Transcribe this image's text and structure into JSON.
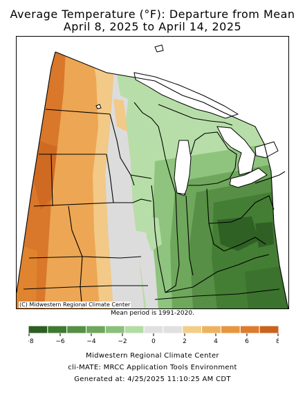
{
  "title_line1": "Average Temperature (°F): Departure from Mean",
  "title_line2": "April 8, 2025 to April 14, 2025",
  "credit": "(C) Midwestern Regional Climate Center",
  "mean_period": "Mean period is 1991-2020.",
  "legend": {
    "colors": [
      "#2e5e22",
      "#3f7a31",
      "#568f45",
      "#6ea75b",
      "#8bc07a",
      "#b3dca4",
      "#e0e0e0",
      "#e0e0e0",
      "#f1cf8a",
      "#eeb25f",
      "#e7963f",
      "#df7b2c",
      "#c9631e"
    ],
    "ticks": [
      "−8",
      "−6",
      "−4",
      "−2",
      "0",
      "2",
      "4",
      "6",
      "8"
    ]
  },
  "footer_line1": "Midwestern Regional Climate Center",
  "footer_line2": "cli-MATE: MRCC Application Tools Environment",
  "footer_line3": "Generated at: 4/25/2025 11:10:25 AM CDT"
}
